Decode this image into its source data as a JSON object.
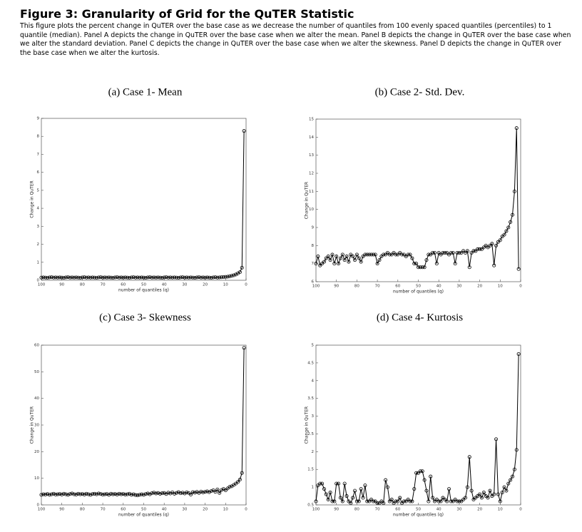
{
  "figure": {
    "title": "Figure 3: Granularity of Grid for the QuTER Statistic",
    "caption": "This figure plots the percent change in QuTER over the base case as we decrease the number of quantiles from 100 evenly spaced quantiles (percentiles) to 1 quantile (median). Panel A depicts the change in QuTER over the base case when we alter the mean. Panel B depicts the change in QuTER over the base case when we alter the standard deviation. Panel C depicts the change in QuTER over the base case when we alter the skewness. Panel D depicts the change in QuTER over the base case when we alter the kurtosis."
  },
  "chart_data": [
    {
      "type": "line",
      "title": "(a) Case 1- Mean",
      "xlabel": "number of quantiles (q)",
      "ylabel": "Change in QuTER",
      "color": "#000000",
      "marker": "circle",
      "xlim": [
        100,
        0
      ],
      "xticks": [
        100,
        90,
        80,
        70,
        60,
        50,
        40,
        30,
        20,
        10,
        0
      ],
      "ylim": [
        0,
        9
      ],
      "yticks": [
        0,
        1,
        2,
        3,
        4,
        5,
        6,
        7,
        8,
        9
      ],
      "x": [
        100,
        99,
        98,
        97,
        96,
        95,
        94,
        93,
        92,
        91,
        90,
        89,
        88,
        87,
        86,
        85,
        84,
        83,
        82,
        81,
        80,
        79,
        78,
        77,
        76,
        75,
        74,
        73,
        72,
        71,
        70,
        69,
        68,
        67,
        66,
        65,
        64,
        63,
        62,
        61,
        60,
        59,
        58,
        57,
        56,
        55,
        54,
        53,
        52,
        51,
        50,
        49,
        48,
        47,
        46,
        45,
        44,
        43,
        42,
        41,
        40,
        39,
        38,
        37,
        36,
        35,
        34,
        33,
        32,
        31,
        30,
        29,
        28,
        27,
        26,
        25,
        24,
        23,
        22,
        21,
        20,
        19,
        18,
        17,
        16,
        15,
        14,
        13,
        12,
        11,
        10,
        9,
        8,
        7,
        6,
        5,
        4,
        3,
        2,
        1
      ],
      "values": [
        0.15,
        0.16,
        0.15,
        0.14,
        0.16,
        0.17,
        0.15,
        0.16,
        0.15,
        0.16,
        0.15,
        0.14,
        0.16,
        0.17,
        0.15,
        0.16,
        0.15,
        0.16,
        0.15,
        0.14,
        0.16,
        0.17,
        0.15,
        0.16,
        0.15,
        0.16,
        0.15,
        0.14,
        0.16,
        0.17,
        0.15,
        0.16,
        0.15,
        0.16,
        0.15,
        0.14,
        0.16,
        0.17,
        0.15,
        0.16,
        0.15,
        0.16,
        0.15,
        0.14,
        0.16,
        0.17,
        0.15,
        0.16,
        0.15,
        0.16,
        0.15,
        0.14,
        0.16,
        0.17,
        0.15,
        0.16,
        0.15,
        0.16,
        0.15,
        0.14,
        0.16,
        0.17,
        0.15,
        0.16,
        0.15,
        0.16,
        0.15,
        0.14,
        0.16,
        0.17,
        0.15,
        0.16,
        0.15,
        0.16,
        0.15,
        0.14,
        0.16,
        0.17,
        0.15,
        0.16,
        0.15,
        0.16,
        0.15,
        0.14,
        0.16,
        0.17,
        0.15,
        0.16,
        0.17,
        0.18,
        0.19,
        0.2,
        0.22,
        0.25,
        0.28,
        0.32,
        0.38,
        0.45,
        0.7,
        8.3
      ]
    },
    {
      "type": "line",
      "title": "(b) Case 2- Std. Dev.",
      "xlabel": "number of quantiles (q)",
      "ylabel": "Change in QuTER",
      "color": "#000000",
      "marker": "circle",
      "xlim": [
        100,
        0
      ],
      "xticks": [
        100,
        90,
        80,
        70,
        60,
        50,
        40,
        30,
        20,
        10,
        0
      ],
      "ylim": [
        6,
        15
      ],
      "yticks": [
        6,
        7,
        8,
        9,
        10,
        11,
        12,
        13,
        14,
        15
      ],
      "x": [
        100,
        99,
        98,
        97,
        96,
        95,
        94,
        93,
        92,
        91,
        90,
        89,
        88,
        87,
        86,
        85,
        84,
        83,
        82,
        81,
        80,
        79,
        78,
        77,
        76,
        75,
        74,
        73,
        72,
        71,
        70,
        69,
        68,
        67,
        66,
        65,
        64,
        63,
        62,
        61,
        60,
        59,
        58,
        57,
        56,
        55,
        54,
        53,
        52,
        51,
        50,
        49,
        48,
        47,
        46,
        45,
        44,
        43,
        42,
        41,
        40,
        39,
        38,
        37,
        36,
        35,
        34,
        33,
        32,
        31,
        30,
        29,
        28,
        27,
        26,
        25,
        24,
        23,
        22,
        21,
        20,
        19,
        18,
        17,
        16,
        15,
        14,
        13,
        12,
        11,
        10,
        9,
        8,
        7,
        6,
        5,
        4,
        3,
        2,
        1
      ],
      "values": [
        7.0,
        7.4,
        6.9,
        7.0,
        7.1,
        7.3,
        7.4,
        7.2,
        7.5,
        7.0,
        7.4,
        7.0,
        7.3,
        7.5,
        7.2,
        7.4,
        7.1,
        7.5,
        7.4,
        7.2,
        7.5,
        7.3,
        7.1,
        7.4,
        7.5,
        7.5,
        7.5,
        7.5,
        7.5,
        7.5,
        7.0,
        7.2,
        7.4,
        7.5,
        7.5,
        7.6,
        7.5,
        7.5,
        7.6,
        7.5,
        7.5,
        7.6,
        7.5,
        7.5,
        7.4,
        7.5,
        7.5,
        7.3,
        7.0,
        7.0,
        6.8,
        6.8,
        6.8,
        6.8,
        7.2,
        7.5,
        7.5,
        7.6,
        7.6,
        7.0,
        7.6,
        7.5,
        7.6,
        7.6,
        7.6,
        7.5,
        7.6,
        7.6,
        7.0,
        7.6,
        7.6,
        7.6,
        7.7,
        7.6,
        7.7,
        6.8,
        7.6,
        7.7,
        7.7,
        7.8,
        7.8,
        7.8,
        7.9,
        8.0,
        7.9,
        8.0,
        8.1,
        6.9,
        8.0,
        8.2,
        8.3,
        8.5,
        8.6,
        8.8,
        9.0,
        9.3,
        9.7,
        11.0,
        14.5,
        6.7
      ]
    },
    {
      "type": "line",
      "title": "(c) Case 3- Skewness",
      "xlabel": "number of quantiles (q)",
      "ylabel": "Change in QuTER",
      "color": "#000000",
      "marker": "circle",
      "xlim": [
        100,
        0
      ],
      "xticks": [
        100,
        90,
        80,
        70,
        60,
        50,
        40,
        30,
        20,
        10,
        0
      ],
      "ylim": [
        0,
        60
      ],
      "yticks": [
        0,
        10,
        20,
        30,
        40,
        50,
        60
      ],
      "x": [
        100,
        99,
        98,
        97,
        96,
        95,
        94,
        93,
        92,
        91,
        90,
        89,
        88,
        87,
        86,
        85,
        84,
        83,
        82,
        81,
        80,
        79,
        78,
        77,
        76,
        75,
        74,
        73,
        72,
        71,
        70,
        69,
        68,
        67,
        66,
        65,
        64,
        63,
        62,
        61,
        60,
        59,
        58,
        57,
        56,
        55,
        54,
        53,
        52,
        51,
        50,
        49,
        48,
        47,
        46,
        45,
        44,
        43,
        42,
        41,
        40,
        39,
        38,
        37,
        36,
        35,
        34,
        33,
        32,
        31,
        30,
        29,
        28,
        27,
        26,
        25,
        24,
        23,
        22,
        21,
        20,
        19,
        18,
        17,
        16,
        15,
        14,
        13,
        12,
        11,
        10,
        9,
        8,
        7,
        6,
        5,
        4,
        3,
        2,
        1
      ],
      "values": [
        3.8,
        4.0,
        3.9,
        4.1,
        3.8,
        4.0,
        4.2,
        3.9,
        4.0,
        4.1,
        3.9,
        4.2,
        4.0,
        3.8,
        4.1,
        4.3,
        4.0,
        3.9,
        4.2,
        4.0,
        4.1,
        3.9,
        4.2,
        4.0,
        3.8,
        4.1,
        4.2,
        4.0,
        4.3,
        4.1,
        3.9,
        4.0,
        4.1,
        3.8,
        4.2,
        4.0,
        4.1,
        3.9,
        4.2,
        4.0,
        4.1,
        3.9,
        4.0,
        4.2,
        3.8,
        4.0,
        3.7,
        3.6,
        3.8,
        4.0,
        3.8,
        4.1,
        4.3,
        4.0,
        4.4,
        4.6,
        4.3,
        4.5,
        4.2,
        4.4,
        4.5,
        4.1,
        4.6,
        4.3,
        4.7,
        4.2,
        4.5,
        4.8,
        4.4,
        4.6,
        4.3,
        4.7,
        4.5,
        3.9,
        4.8,
        4.6,
        4.9,
        4.5,
        5.0,
        4.7,
        4.9,
        5.1,
        4.8,
        5.2,
        5.5,
        4.9,
        5.8,
        4.5,
        5.6,
        6.0,
        5.5,
        6.2,
        6.8,
        7.0,
        7.5,
        8.0,
        8.6,
        9.5,
        12.0,
        59.0
      ]
    },
    {
      "type": "line",
      "title": "(d) Case 4- Kurtosis",
      "xlabel": "number of quantiles (q)",
      "ylabel": "Change in QuTER",
      "color": "#000000",
      "marker": "circle",
      "xlim": [
        100,
        0
      ],
      "xticks": [
        100,
        90,
        80,
        70,
        60,
        50,
        40,
        30,
        20,
        10,
        0
      ],
      "ylim": [
        0.5,
        5
      ],
      "yticks": [
        0.5,
        1,
        1.5,
        2,
        2.5,
        3,
        3.5,
        4,
        4.5,
        5
      ],
      "x": [
        100,
        99,
        98,
        97,
        96,
        95,
        94,
        93,
        92,
        91,
        90,
        89,
        88,
        87,
        86,
        85,
        84,
        83,
        82,
        81,
        80,
        79,
        78,
        77,
        76,
        75,
        74,
        73,
        72,
        71,
        70,
        69,
        68,
        67,
        66,
        65,
        64,
        63,
        62,
        61,
        60,
        59,
        58,
        57,
        56,
        55,
        54,
        53,
        52,
        51,
        50,
        49,
        48,
        47,
        46,
        45,
        44,
        43,
        42,
        41,
        40,
        39,
        38,
        37,
        36,
        35,
        34,
        33,
        32,
        31,
        30,
        29,
        28,
        27,
        26,
        25,
        24,
        23,
        22,
        21,
        20,
        19,
        18,
        17,
        16,
        15,
        14,
        13,
        12,
        11,
        10,
        9,
        8,
        7,
        6,
        5,
        4,
        3,
        2,
        1
      ],
      "values": [
        0.6,
        1.05,
        1.1,
        1.1,
        0.95,
        0.8,
        0.65,
        0.85,
        0.6,
        0.6,
        1.1,
        1.1,
        0.7,
        0.6,
        1.1,
        0.75,
        0.6,
        0.55,
        0.7,
        0.9,
        0.6,
        0.6,
        0.95,
        0.7,
        1.05,
        0.6,
        0.6,
        0.65,
        0.6,
        0.6,
        0.55,
        0.55,
        0.6,
        0.55,
        1.2,
        1.0,
        0.6,
        0.65,
        0.55,
        0.6,
        0.6,
        0.7,
        0.55,
        0.6,
        0.6,
        0.65,
        0.6,
        0.6,
        0.95,
        1.4,
        1.4,
        1.45,
        1.45,
        1.2,
        0.9,
        0.6,
        1.3,
        0.7,
        0.6,
        0.65,
        0.6,
        0.6,
        0.7,
        0.65,
        0.6,
        0.95,
        0.6,
        0.6,
        0.65,
        0.6,
        0.6,
        0.6,
        0.65,
        0.7,
        1.0,
        1.85,
        0.9,
        0.65,
        0.7,
        0.75,
        0.8,
        0.7,
        0.85,
        0.75,
        0.7,
        0.9,
        0.75,
        0.8,
        2.35,
        0.8,
        0.6,
        0.85,
        1.0,
        0.9,
        1.1,
        1.2,
        1.3,
        1.5,
        2.05,
        4.75
      ]
    }
  ]
}
